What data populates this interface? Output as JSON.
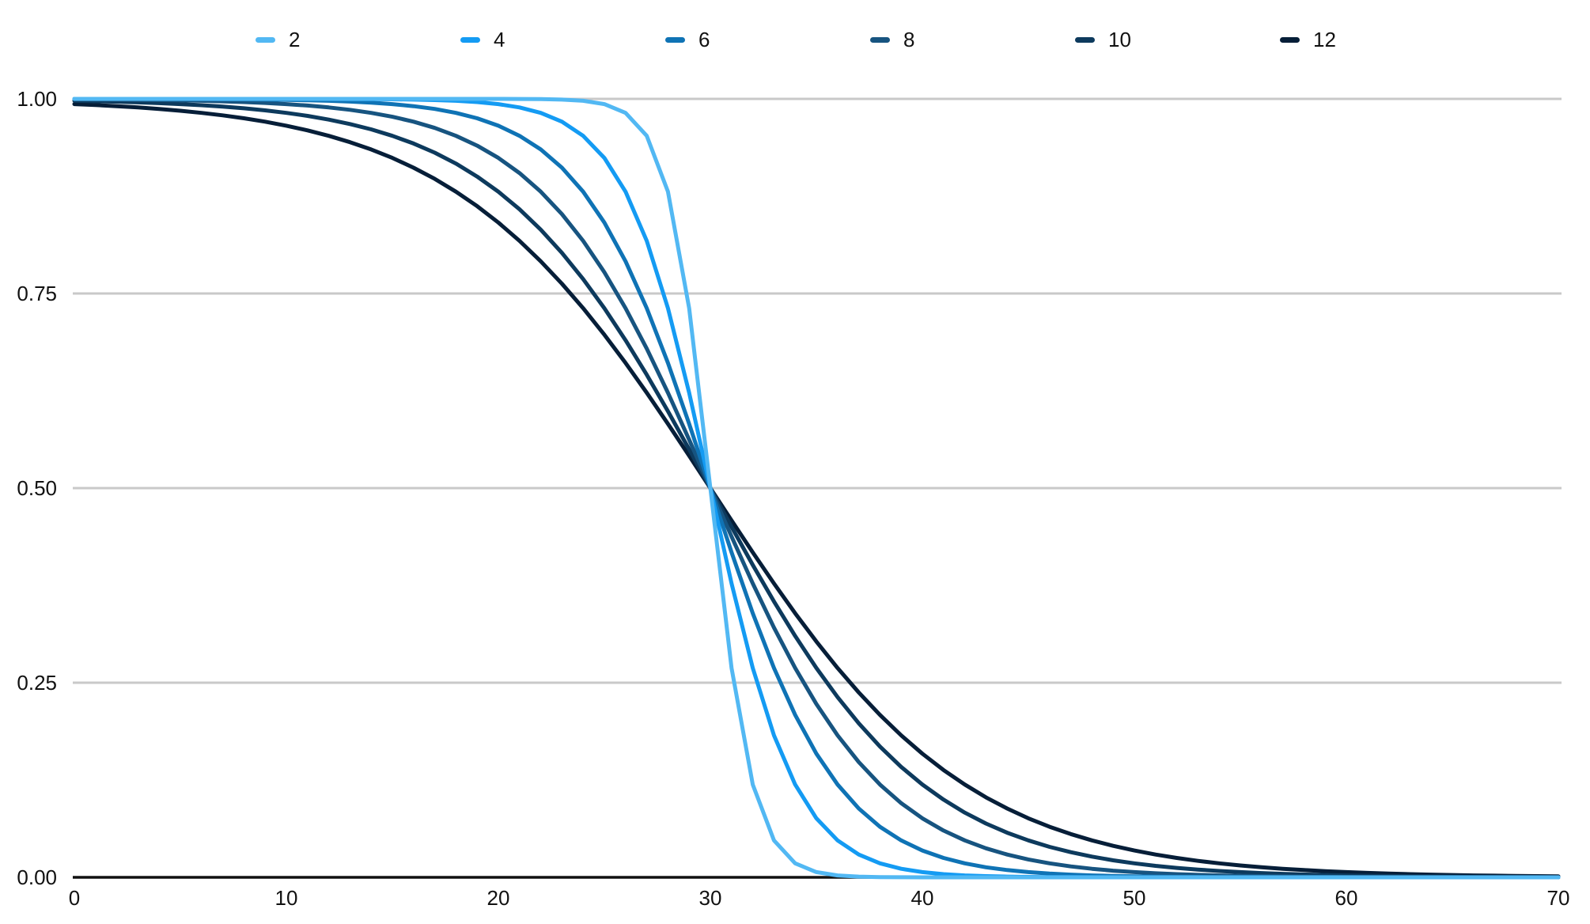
{
  "chart_data": {
    "type": "line",
    "title": "",
    "xlabel": "",
    "ylabel": "",
    "x_range": [
      0,
      70
    ],
    "y_range": [
      0,
      1
    ],
    "x_ticks": [
      "0",
      "10",
      "20",
      "30",
      "40",
      "50",
      "60",
      "70"
    ],
    "x_tick_values": [
      0,
      10,
      20,
      30,
      40,
      50,
      60,
      70
    ],
    "y_ticks": [
      "1.00",
      "0.75",
      "0.50",
      "0.25",
      "0.00"
    ],
    "y_tick_values": [
      1.0,
      0.75,
      0.5,
      0.25,
      0.0
    ],
    "grid": "horizontal-gridlines-on",
    "legend_position": "top",
    "crossing_point": {
      "x": 30,
      "y": 0.5
    },
    "formula": "y = 1 / (1 + exp(2 * (x - 30) / k)), sampled at integer x from 0 to 70",
    "sample_step": 1,
    "x_step5": [
      0,
      5,
      10,
      15,
      20,
      25,
      30,
      35,
      40,
      45,
      50,
      55,
      60,
      65,
      70
    ],
    "series": [
      {
        "name": "2",
        "k": 2,
        "color": "#52b8f3",
        "values_step5": [
          1.0,
          1.0,
          1.0,
          1.0,
          1.0,
          0.9933,
          0.5,
          0.0067,
          0.0,
          0.0,
          0.0,
          0.0,
          0.0,
          0.0,
          0.0
        ]
      },
      {
        "name": "4",
        "k": 4,
        "color": "#149bf3",
        "values_step5": [
          1.0,
          1.0,
          1.0,
          0.9994,
          0.9933,
          0.9241,
          0.5,
          0.0759,
          0.0067,
          0.0006,
          0.0,
          0.0,
          0.0,
          0.0,
          0.0
        ]
      },
      {
        "name": "6",
        "k": 6,
        "color": "#0f73b5",
        "values_step5": [
          1.0,
          0.9998,
          0.9987,
          0.9933,
          0.9655,
          0.8411,
          0.5,
          0.1589,
          0.0345,
          0.0067,
          0.0013,
          0.0002,
          0.0,
          0.0,
          0.0
        ]
      },
      {
        "name": "8",
        "k": 8,
        "color": "#175480",
        "values_step5": [
          0.9994,
          0.9981,
          0.9933,
          0.977,
          0.9241,
          0.7773,
          0.5,
          0.2227,
          0.0759,
          0.023,
          0.0067,
          0.0019,
          0.0005,
          0.0002,
          0.0
        ]
      },
      {
        "name": "10",
        "k": 10,
        "color": "#0d3a5d",
        "values_step5": [
          0.9975,
          0.9933,
          0.982,
          0.9526,
          0.8808,
          0.7311,
          0.5,
          0.2689,
          0.1192,
          0.0474,
          0.018,
          0.0067,
          0.0025,
          0.0009,
          0.0003
        ]
      },
      {
        "name": "12",
        "k": 12,
        "color": "#061e38",
        "values_step5": [
          0.9933,
          0.9847,
          0.9655,
          0.9241,
          0.8411,
          0.6971,
          0.5,
          0.3029,
          0.1589,
          0.0759,
          0.0345,
          0.0153,
          0.0067,
          0.0029,
          0.0013
        ]
      }
    ],
    "colors": {
      "background": "#ffffff",
      "gridline": "#c9c9c9",
      "axis": "#111111",
      "text": "#111111"
    }
  }
}
